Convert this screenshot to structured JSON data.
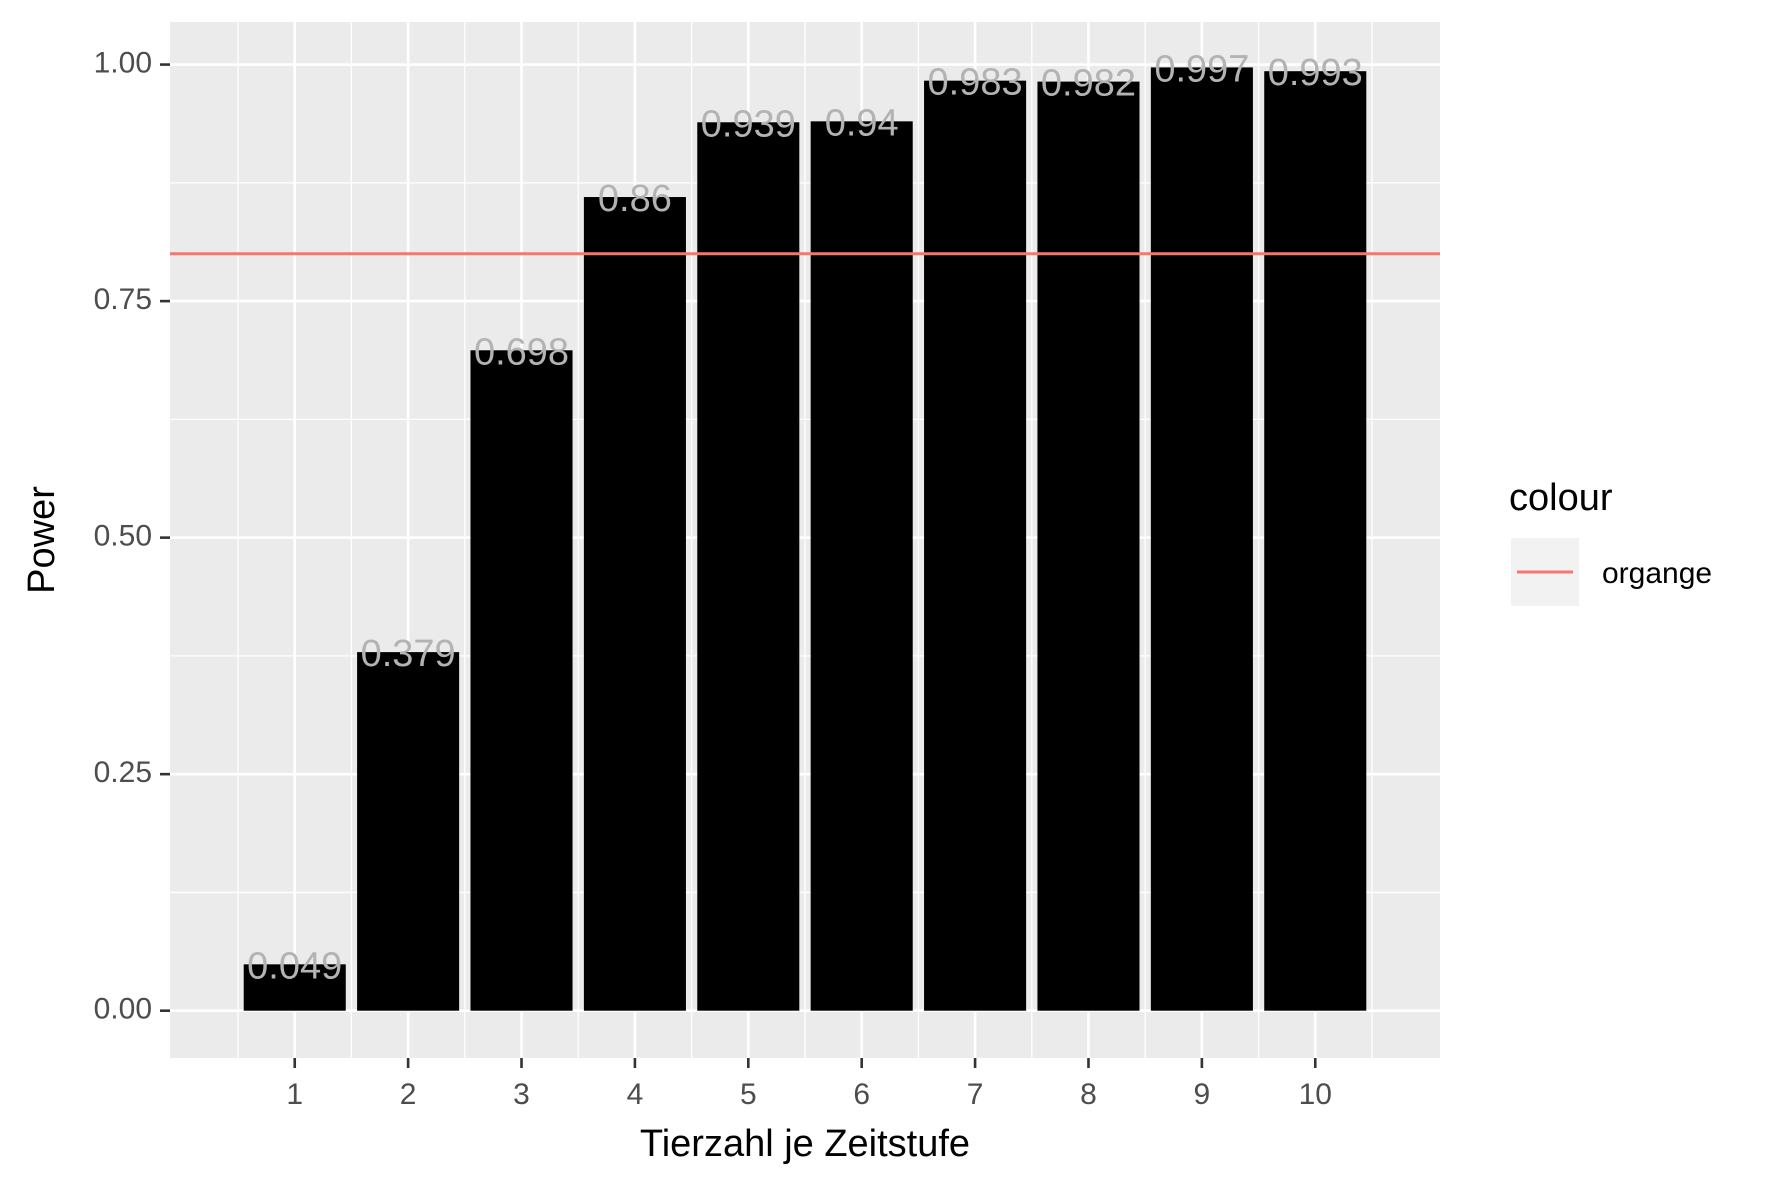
{
  "chart_data": {
    "type": "bar",
    "categories": [
      "1",
      "2",
      "3",
      "4",
      "5",
      "6",
      "7",
      "8",
      "9",
      "10"
    ],
    "values": [
      0.049,
      0.379,
      0.698,
      0.86,
      0.939,
      0.94,
      0.983,
      0.982,
      0.997,
      0.993
    ],
    "value_labels": [
      "0.049",
      "0.379",
      "0.698",
      "0.86",
      "0.939",
      "0.94",
      "0.983",
      "0.982",
      "0.997",
      "0.993"
    ],
    "y_ticks": [
      0.0,
      0.25,
      0.5,
      0.75,
      1.0
    ],
    "y_tick_labels": [
      "0.00",
      "0.25",
      "0.50",
      "0.75",
      "1.00"
    ],
    "ylim": [
      -0.05,
      1.045
    ],
    "xlabel": "Tierzahl je Zeitstufe",
    "ylabel": "Power",
    "grid": true,
    "reference_line": {
      "y": 0.8,
      "color": "#F8766D"
    },
    "legend": {
      "title": "colour",
      "entries": [
        {
          "label": "organge",
          "color": "#F8766D"
        }
      ],
      "position": "right"
    },
    "colors": {
      "bar_fill": "#000000",
      "panel_background": "#EBEBEB",
      "grid": "#FFFFFF",
      "data_label": "#B3B3B3",
      "reference_line": "#F8766D"
    }
  }
}
